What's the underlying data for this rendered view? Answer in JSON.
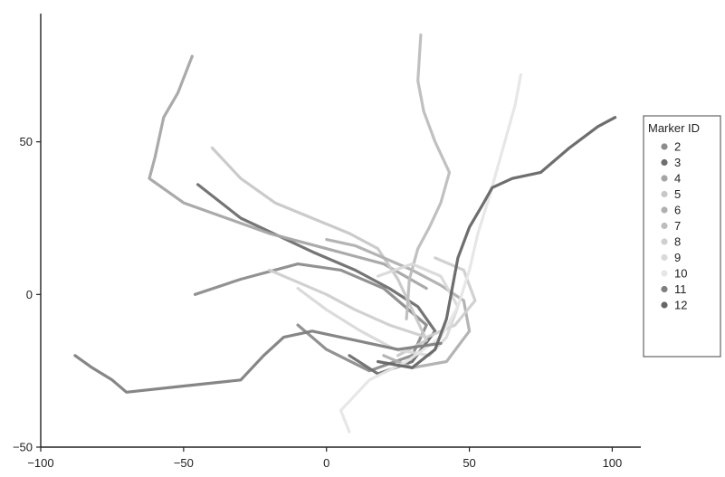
{
  "chart_data": {
    "type": "line",
    "title": "",
    "xlabel": "",
    "ylabel": "",
    "xlim": [
      -100,
      110
    ],
    "ylim": [
      -50,
      92
    ],
    "x_ticks": [
      {
        "value": -100,
        "label": "−100"
      },
      {
        "value": -50,
        "label": "−50"
      },
      {
        "value": 0,
        "label": "0"
      },
      {
        "value": 50,
        "label": "50"
      },
      {
        "value": 100,
        "label": "100"
      }
    ],
    "y_ticks": [
      {
        "value": -50,
        "label": "−50"
      },
      {
        "value": 0,
        "label": "0"
      },
      {
        "value": 50,
        "label": "50"
      }
    ],
    "grid": false,
    "legend": {
      "title": "Marker ID",
      "placement": "right"
    },
    "series": [
      {
        "name": "2",
        "color": "#8c8c8c",
        "points": [
          [
            -46,
            0
          ],
          [
            -30,
            5
          ],
          [
            -10,
            10
          ],
          [
            5,
            8
          ],
          [
            20,
            2
          ],
          [
            35,
            -10
          ],
          [
            30,
            -20
          ],
          [
            15,
            -25
          ],
          [
            0,
            -18
          ],
          [
            -10,
            -10
          ]
        ]
      },
      {
        "name": "3",
        "color": "#6e6e6e",
        "points": [
          [
            -45,
            36
          ],
          [
            -30,
            25
          ],
          [
            -5,
            14
          ],
          [
            10,
            8
          ],
          [
            22,
            2
          ],
          [
            32,
            -4
          ],
          [
            38,
            -12
          ],
          [
            30,
            -22
          ],
          [
            18,
            -26
          ],
          [
            8,
            -20
          ]
        ]
      },
      {
        "name": "4",
        "color": "#a5a5a5",
        "points": [
          [
            -47,
            78
          ],
          [
            -52,
            66
          ],
          [
            -57,
            58
          ],
          [
            -60,
            45
          ],
          [
            -62,
            38
          ],
          [
            -50,
            30
          ],
          [
            -35,
            25
          ],
          [
            -20,
            20
          ],
          [
            0,
            15
          ],
          [
            20,
            10
          ],
          [
            35,
            2
          ]
        ]
      },
      {
        "name": "5",
        "color": "#c8c8c8",
        "points": [
          [
            -40,
            48
          ],
          [
            -30,
            38
          ],
          [
            -18,
            30
          ],
          [
            -5,
            25
          ],
          [
            8,
            20
          ],
          [
            18,
            15
          ],
          [
            25,
            5
          ],
          [
            30,
            -5
          ],
          [
            35,
            -15
          ],
          [
            25,
            -20
          ]
        ]
      },
      {
        "name": "6",
        "color": "#b0b0b0",
        "points": [
          [
            0,
            18
          ],
          [
            10,
            16
          ],
          [
            20,
            12
          ],
          [
            30,
            8
          ],
          [
            40,
            3
          ],
          [
            48,
            -2
          ],
          [
            50,
            -12
          ],
          [
            42,
            -22
          ],
          [
            30,
            -24
          ],
          [
            20,
            -20
          ]
        ]
      },
      {
        "name": "7",
        "color": "#bdbdbd",
        "points": [
          [
            33,
            85
          ],
          [
            32,
            70
          ],
          [
            34,
            60
          ],
          [
            38,
            50
          ],
          [
            43,
            40
          ],
          [
            40,
            30
          ],
          [
            36,
            22
          ],
          [
            32,
            15
          ],
          [
            29,
            5
          ],
          [
            28,
            -8
          ]
        ]
      },
      {
        "name": "8",
        "color": "#cfcfcf",
        "points": [
          [
            -20,
            8
          ],
          [
            -10,
            4
          ],
          [
            0,
            0
          ],
          [
            10,
            -5
          ],
          [
            22,
            -10
          ],
          [
            35,
            -14
          ],
          [
            45,
            -10
          ],
          [
            52,
            -2
          ],
          [
            48,
            8
          ],
          [
            38,
            12
          ]
        ]
      },
      {
        "name": "9",
        "color": "#d9d9d9",
        "points": [
          [
            -10,
            2
          ],
          [
            0,
            -5
          ],
          [
            12,
            -12
          ],
          [
            24,
            -18
          ],
          [
            36,
            -20
          ],
          [
            42,
            -14
          ],
          [
            46,
            -4
          ],
          [
            40,
            6
          ],
          [
            30,
            10
          ],
          [
            18,
            6
          ]
        ]
      },
      {
        "name": "10",
        "color": "#e6e6e6",
        "points": [
          [
            68,
            72
          ],
          [
            66,
            62
          ],
          [
            63,
            52
          ],
          [
            60,
            42
          ],
          [
            57,
            32
          ],
          [
            53,
            20
          ],
          [
            50,
            8
          ],
          [
            46,
            -4
          ],
          [
            40,
            -14
          ],
          [
            28,
            -22
          ],
          [
            15,
            -28
          ],
          [
            5,
            -38
          ],
          [
            8,
            -45
          ]
        ]
      },
      {
        "name": "11",
        "color": "#7f7f7f",
        "points": [
          [
            -88,
            -20
          ],
          [
            -82,
            -24
          ],
          [
            -75,
            -28
          ],
          [
            -70,
            -32
          ],
          [
            -50,
            -30
          ],
          [
            -30,
            -28
          ],
          [
            -22,
            -20
          ],
          [
            -15,
            -14
          ],
          [
            -5,
            -12
          ],
          [
            10,
            -15
          ],
          [
            25,
            -18
          ],
          [
            40,
            -16
          ]
        ]
      },
      {
        "name": "12",
        "color": "#666666",
        "points": [
          [
            101,
            58
          ],
          [
            95,
            55
          ],
          [
            85,
            48
          ],
          [
            75,
            40
          ],
          [
            65,
            38
          ],
          [
            58,
            35
          ],
          [
            55,
            30
          ],
          [
            50,
            22
          ],
          [
            46,
            12
          ],
          [
            44,
            2
          ],
          [
            42,
            -8
          ],
          [
            38,
            -18
          ],
          [
            30,
            -24
          ],
          [
            18,
            -22
          ]
        ]
      }
    ]
  }
}
